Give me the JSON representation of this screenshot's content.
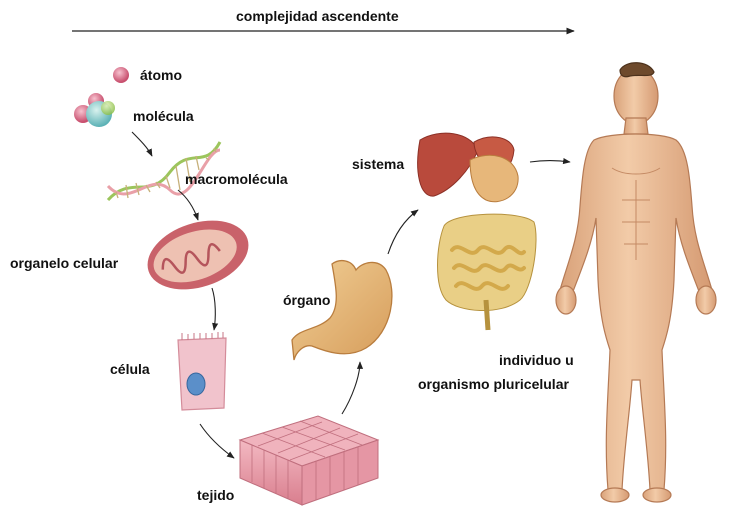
{
  "diagram": {
    "title": "complejidad ascendente",
    "levels": [
      {
        "id": "atomo",
        "label": "átomo"
      },
      {
        "id": "molecula",
        "label": "molécula"
      },
      {
        "id": "macromolecula",
        "label": "macromolécula"
      },
      {
        "id": "organelo",
        "label": "organelo celular"
      },
      {
        "id": "celula",
        "label": "célula"
      },
      {
        "id": "tejido",
        "label": "tejido"
      },
      {
        "id": "organo",
        "label": "órgano"
      },
      {
        "id": "sistema",
        "label": "sistema"
      },
      {
        "id": "individuo",
        "label_line1": "individuo u",
        "label_line2": "organismo pluricelular"
      }
    ]
  },
  "colors": {
    "text": "#111111",
    "arrow": "#222222",
    "skin": "#efc4a0",
    "skin_shade": "#d9a27a",
    "organ_red": "#b94a3c",
    "stomach": "#e7b77a",
    "intestine": "#e8c97a",
    "tissue_pink": "#eaa3ad",
    "mito_outer": "#c9626a",
    "mito_inner": "#e7b3a0",
    "dna_green": "#9cc55c",
    "dna_pink": "#e9a0a8",
    "atom_pink": "#e07a92",
    "molecule_teal": "#6cc6c4",
    "cell_pink": "#f1c3cc",
    "nucleus_blue": "#5b8fc9"
  }
}
